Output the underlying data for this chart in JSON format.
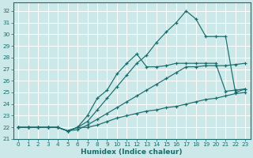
{
  "xlabel": "Humidex (Indice chaleur)",
  "bg_color": "#cce8e8",
  "grid_color": "#ffffff",
  "line_color": "#1a6b6b",
  "xlim": [
    -0.5,
    23.5
  ],
  "ylim": [
    21.0,
    32.7
  ],
  "yticks": [
    21,
    22,
    23,
    24,
    25,
    26,
    27,
    28,
    29,
    30,
    31,
    32
  ],
  "xticks": [
    0,
    1,
    2,
    3,
    4,
    5,
    6,
    7,
    8,
    9,
    10,
    11,
    12,
    13,
    14,
    15,
    16,
    17,
    18,
    19,
    20,
    21,
    22,
    23
  ],
  "series": [
    [
      22.0,
      22.0,
      22.0,
      22.0,
      22.0,
      21.7,
      21.8,
      22.2,
      22.7,
      23.2,
      23.7,
      24.2,
      24.7,
      25.2,
      25.7,
      26.2,
      26.7,
      27.2,
      27.2,
      27.3,
      27.3,
      27.3,
      27.4,
      27.5
    ],
    [
      22.0,
      22.0,
      22.0,
      22.0,
      22.0,
      21.7,
      22.0,
      23.0,
      24.5,
      25.2,
      26.6,
      27.5,
      28.3,
      27.2,
      27.2,
      27.3,
      27.5,
      27.5,
      27.5,
      27.5,
      27.5,
      25.1,
      25.2,
      25.3
    ],
    [
      22.0,
      22.0,
      22.0,
      22.0,
      22.0,
      21.7,
      22.0,
      22.5,
      23.5,
      24.5,
      25.5,
      26.5,
      27.5,
      28.2,
      29.3,
      30.2,
      31.0,
      32.0,
      31.3,
      29.8,
      29.8,
      29.8,
      25.0,
      25.3
    ],
    [
      22.0,
      22.0,
      22.0,
      22.0,
      22.0,
      21.7,
      22.0,
      22.0,
      22.2,
      22.5,
      22.8,
      23.0,
      23.2,
      23.4,
      23.5,
      23.7,
      23.8,
      24.0,
      24.2,
      24.4,
      24.5,
      24.7,
      24.9,
      25.0
    ]
  ]
}
